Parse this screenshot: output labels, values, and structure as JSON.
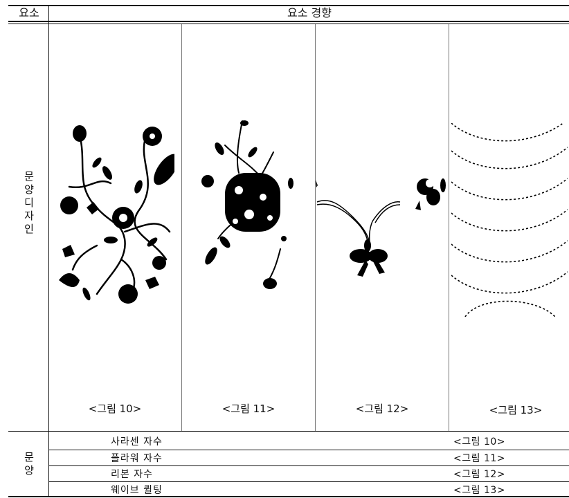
{
  "header": {
    "col_element": "요소",
    "col_trend": "요소 경향"
  },
  "section_design": {
    "label_chars": [
      "문",
      "양",
      "디",
      "자",
      "인"
    ],
    "figures": [
      {
        "caption": "<그림 10>",
        "icon": "floral-saracen-embroidery"
      },
      {
        "caption": "<그림 11>",
        "icon": "floral-cluster-embroidery"
      },
      {
        "caption": "<그림 12>",
        "icon": "ribbon-embroidery"
      },
      {
        "caption": "<그림 13>",
        "icon": "wave-quilting"
      }
    ]
  },
  "section_pattern": {
    "label_chars": [
      "문",
      "양"
    ],
    "rows": [
      {
        "name": "사라센 자수",
        "figure": "<그림 10>"
      },
      {
        "name": "플라워 자수",
        "figure": "<그림 11>"
      },
      {
        "name": "리본 자수",
        "figure": "<그림 12>"
      },
      {
        "name": "웨이브 퀼팅",
        "figure": "<그림 13>"
      }
    ]
  }
}
